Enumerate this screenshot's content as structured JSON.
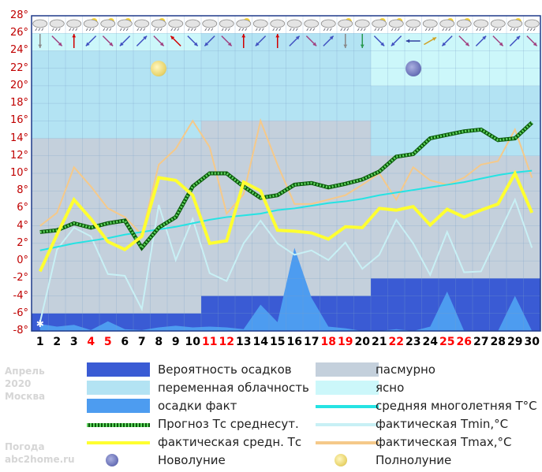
{
  "chart_data": {
    "type": "line",
    "title": "",
    "xlabel": "",
    "ylabel": "",
    "x": [
      1,
      2,
      3,
      4,
      5,
      6,
      7,
      8,
      9,
      10,
      11,
      12,
      13,
      14,
      15,
      16,
      17,
      18,
      19,
      20,
      21,
      22,
      23,
      24,
      25,
      26,
      27,
      28,
      29,
      30
    ],
    "x_tick_labels": [
      "1",
      "2",
      "3",
      "4",
      "5",
      "6",
      "7",
      "8",
      "9",
      "10",
      "11",
      "12",
      "13",
      "14",
      "15",
      "16",
      "17",
      "18",
      "19",
      "20",
      "21",
      "22",
      "23",
      "24",
      "25",
      "26",
      "27",
      "28",
      "29",
      "30"
    ],
    "weekend_days": [
      4,
      5,
      11,
      12,
      18,
      19,
      22,
      25,
      26
    ],
    "ylim": [
      -8,
      28
    ],
    "y_tick_labels": [
      "28°",
      "26°",
      "24°",
      "22°",
      "20°",
      "18°",
      "16°",
      "14°",
      "12°",
      "10°",
      "8°",
      "6°",
      "4°",
      "2°",
      "0°",
      "-2°",
      "-4°",
      "-6°",
      "-8°"
    ],
    "colors": {
      "precip_prob": "#3a5bd4",
      "overcast": "#c4d0dc",
      "partly_cloudy": "#b3e3f3",
      "clear": "#ccf7fa",
      "precip_fact": "#4d9cf0",
      "forecast_mean": "#1e9a1e",
      "climate_mean": "#25e3e3",
      "tmin": "#c8f0f5",
      "tmax": "#f5c98a",
      "fact_mean": "#ffff30",
      "weekend_label": "#ff0000",
      "y_tick": "#c00000"
    },
    "series": [
      {
        "name": "Прогноз Тс среднесут.",
        "values": [
          3.3,
          3.5,
          4.3,
          3.8,
          4.3,
          4.6,
          1.5,
          3.8,
          5,
          8.5,
          10,
          10,
          8.5,
          7.2,
          7.5,
          8.7,
          8.9,
          8.4,
          8.8,
          9.3,
          10.2,
          11.9,
          12.2,
          14,
          14.4,
          14.8,
          15,
          13.8,
          14,
          15.8
        ]
      },
      {
        "name": "фактическая средн. Тс",
        "values": [
          -1.2,
          3,
          7,
          4.8,
          2.2,
          1.3,
          2.8,
          9.5,
          9.2,
          7.5,
          2,
          2.3,
          9,
          8,
          3.5,
          3.4,
          3.2,
          2.5,
          3.9,
          3.8,
          6,
          5.8,
          6.2,
          4.1,
          5.9,
          5,
          5.8,
          6.5,
          10,
          5.5
        ]
      },
      {
        "name": "фактическая Tmin,°C",
        "values": [
          -7,
          1.3,
          3.8,
          2.8,
          -1.5,
          -1.7,
          -5.5,
          6.4,
          0.1,
          4.8,
          -1.4,
          -2.3,
          2,
          4.6,
          2,
          0.7,
          1.2,
          0.1,
          2.1,
          -0.9,
          0.7,
          4.7,
          2,
          -1.6,
          3.3,
          -1.3,
          -1.2,
          2.9,
          7,
          1.5
        ]
      },
      {
        "name": "фактическая Tmax,°C",
        "values": [
          4,
          5.5,
          10.7,
          8.5,
          6,
          5,
          3,
          11,
          12.8,
          16,
          13,
          5.4,
          7.6,
          16,
          11,
          6.5,
          6.5,
          7,
          7.5,
          8.7,
          10,
          7,
          10.7,
          9.2,
          8.7,
          9.5,
          11,
          11.4,
          15,
          9.5
        ]
      },
      {
        "name": "средняя многолетняя T°C",
        "values": [
          1.2,
          1.6,
          2,
          2.3,
          2.6,
          3,
          3.3,
          3.6,
          3.9,
          4.3,
          4.7,
          5,
          5.2,
          5.4,
          5.8,
          6,
          6.3,
          6.6,
          6.8,
          7.1,
          7.5,
          7.8,
          8.1,
          8.4,
          8.7,
          9,
          9.4,
          9.8,
          10.1,
          10.3
        ]
      },
      {
        "name": "осадки факт",
        "values": [
          -7.2,
          -7.5,
          -7.3,
          -7.9,
          -6.9,
          -7.8,
          -7.9,
          -7.6,
          -7.4,
          -7.6,
          -7.5,
          -7.6,
          -7.8,
          -5,
          -7,
          1.5,
          -4.2,
          -7.5,
          -7.7,
          -8,
          -8,
          -7.8,
          -8,
          -7.5,
          -3.5,
          -8,
          -8,
          -8,
          -4,
          -8
        ]
      }
    ],
    "precip_probability_steps": [
      {
        "from": 0.5,
        "to": 10.5,
        "top": -6
      },
      {
        "from": 10.5,
        "to": 20.5,
        "top": -4
      },
      {
        "from": 20.5,
        "to": 30.5,
        "top": -2
      }
    ],
    "cloud_bands": [
      {
        "from": 0.5,
        "to": 10.5,
        "overcast_top": 14,
        "partly_top": 24,
        "clear_top": 26
      },
      {
        "from": 10.5,
        "to": 20.5,
        "overcast_top": 16,
        "partly_top": 26,
        "clear_top": 26
      },
      {
        "from": 20.5,
        "to": 30.5,
        "overcast_top": 12,
        "partly_top": 20,
        "clear_top": 26
      }
    ],
    "moon_phases": [
      {
        "type": "full",
        "day": 8
      },
      {
        "type": "new",
        "day": 23
      }
    ],
    "legend": [
      {
        "label": "Вероятность осадков",
        "kind": "swatch",
        "color": "#3a5bd4"
      },
      {
        "label": "пасмурно",
        "kind": "swatch",
        "color": "#c4d0dc"
      },
      {
        "label": "переменная облачность",
        "kind": "swatch",
        "color": "#b3e3f3"
      },
      {
        "label": "ясно",
        "kind": "swatch",
        "color": "#ccf7fa"
      },
      {
        "label": "осадки факт",
        "kind": "swatch",
        "color": "#4d9cf0"
      },
      {
        "label": "средняя многолетняя T°C",
        "kind": "line",
        "color": "#25e3e3"
      },
      {
        "label": "Прогноз Тс среднесут.",
        "kind": "dotted",
        "color": "#1e9a1e"
      },
      {
        "label": "фактическая Tmin,°C",
        "kind": "line",
        "color": "#c8f0f5"
      },
      {
        "label": "фактическая средн. Тс",
        "kind": "line",
        "color": "#ffff30"
      },
      {
        "label": "фактическая Tmax,°C",
        "kind": "line",
        "color": "#f5c98a"
      },
      {
        "label": "Новолуние",
        "kind": "newmoon"
      },
      {
        "label": "Полнолуние",
        "kind": "fullmoon"
      }
    ]
  },
  "sidebar": {
    "month": "Апрель",
    "year": "2020",
    "city": "Москва",
    "site_label": "Погода",
    "site": "abc2home.ru"
  },
  "icons": {
    "weather_strip": "cloud-sun-icons",
    "wind_strip": "wind-arrow-icons"
  }
}
